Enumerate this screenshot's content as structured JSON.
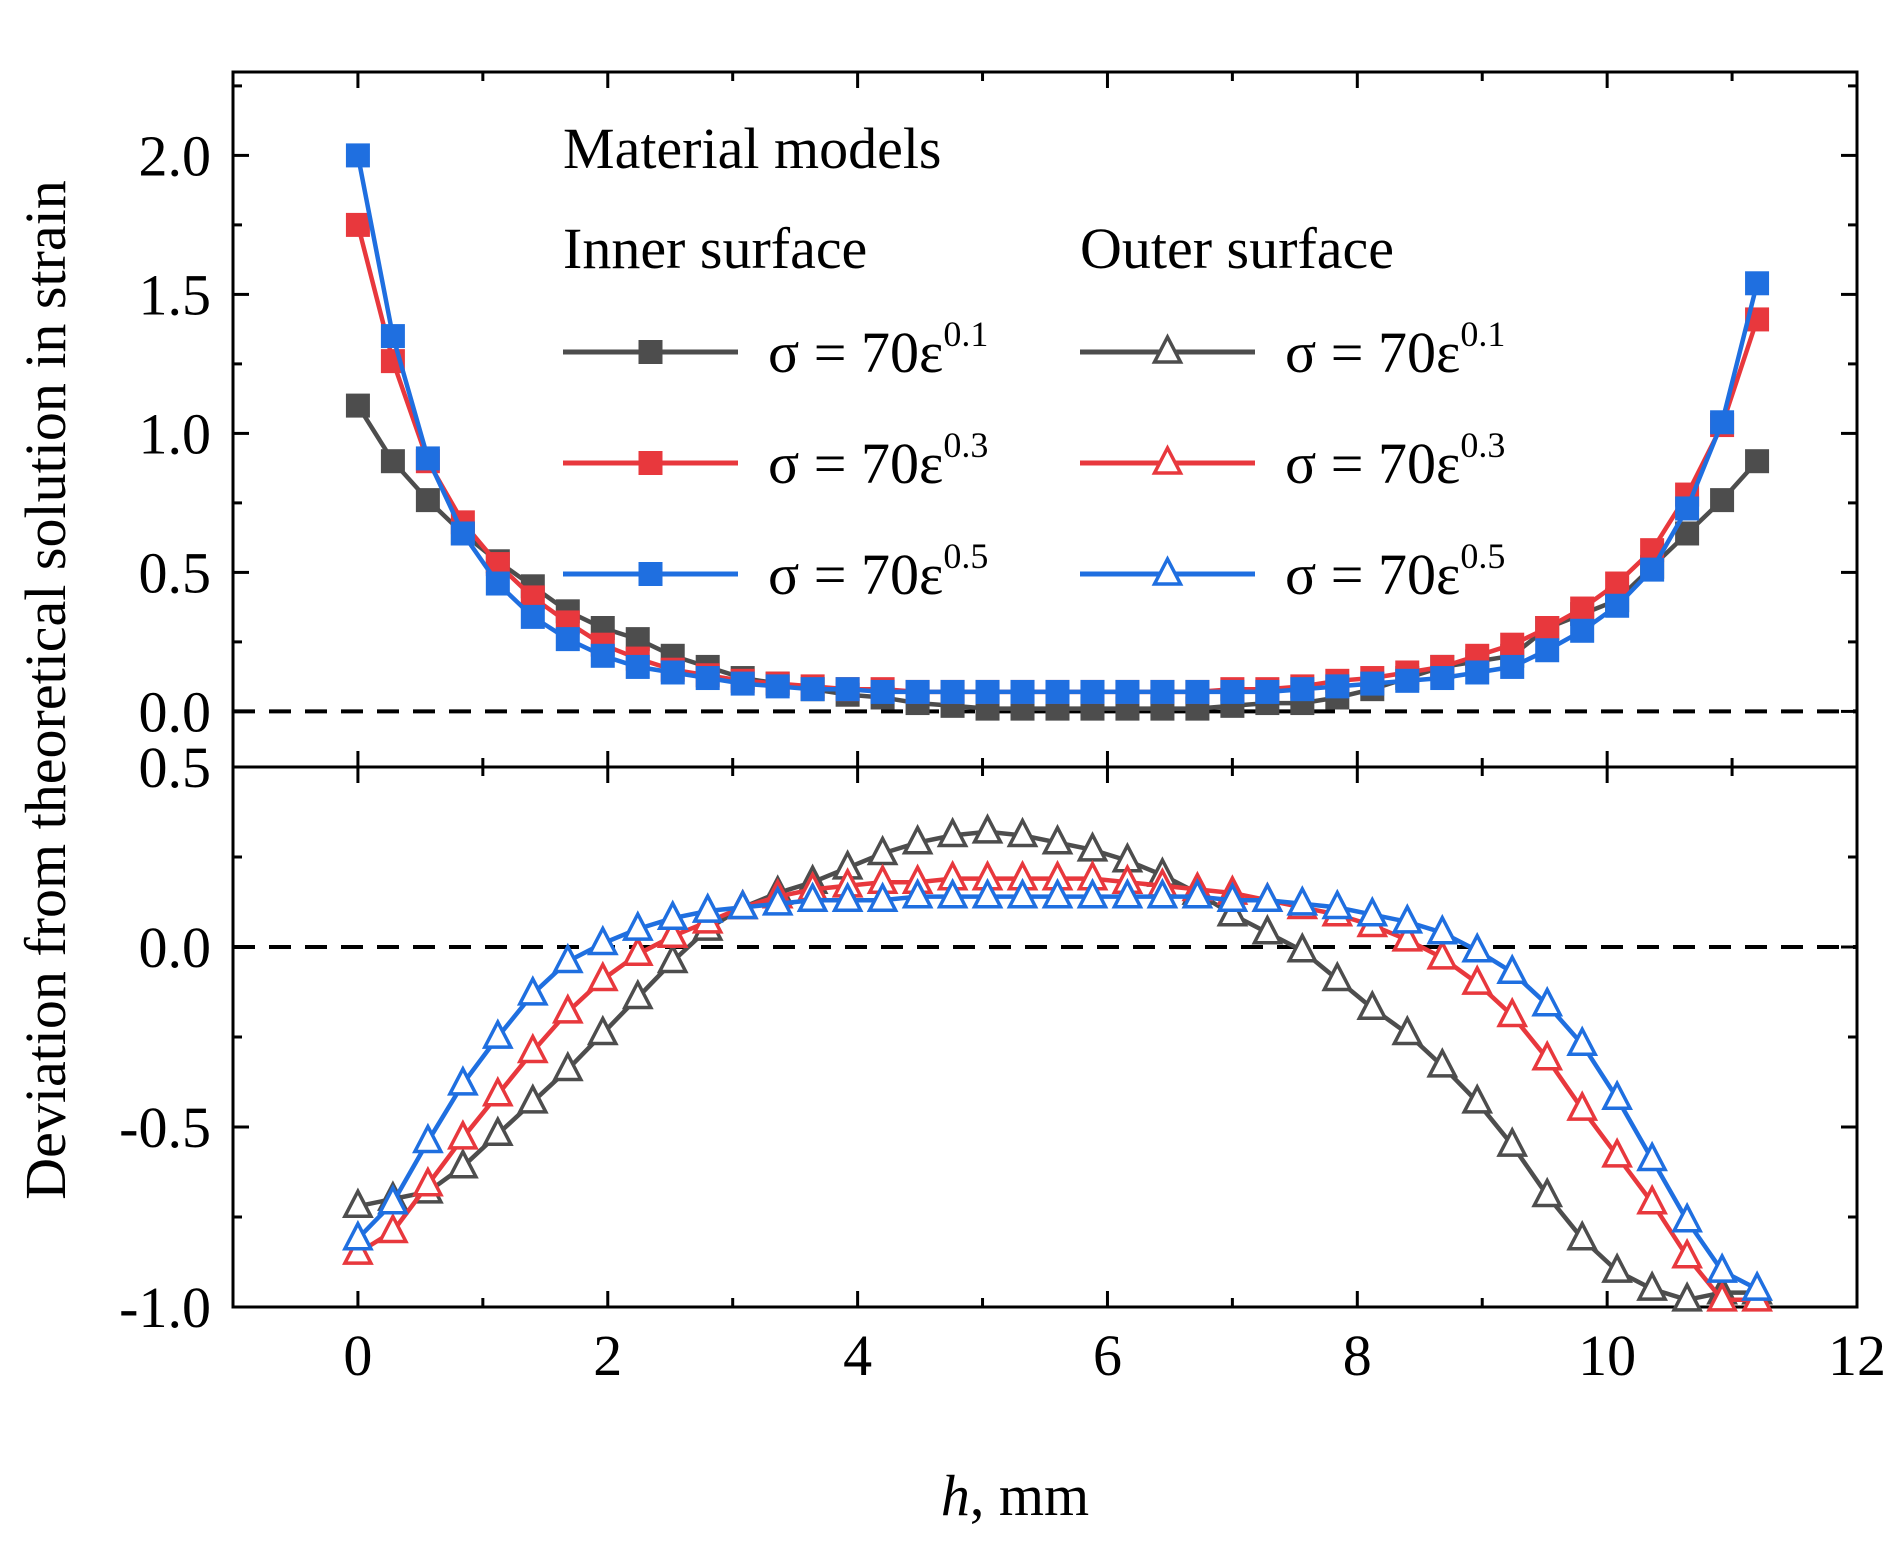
{
  "colors": {
    "gray": "#4d4d4d",
    "red": "#e8383d",
    "blue": "#1f6fe0",
    "axis": "#000000"
  },
  "chart_data": [
    {
      "type": "line",
      "panel": "top",
      "title": "",
      "xlim": [
        -1,
        12
      ],
      "ylim": [
        -0.2,
        2.3
      ],
      "y_ticks": [
        "0.0",
        "0.5",
        "1.0",
        "1.5",
        "2.0"
      ],
      "y_tick_values": [
        0,
        0.5,
        1.0,
        1.5,
        2.0
      ],
      "reference_line": 0,
      "legend": {
        "heading": "Material models",
        "group_labels": [
          "Inner surface",
          "Outer surface"
        ]
      },
      "x": [
        0.0,
        0.28,
        0.56,
        0.84,
        1.12,
        1.4,
        1.68,
        1.96,
        2.24,
        2.52,
        2.8,
        3.08,
        3.36,
        3.64,
        3.92,
        4.2,
        4.48,
        4.76,
        5.04,
        5.32,
        5.6,
        5.88,
        6.16,
        6.44,
        6.72,
        7.0,
        7.28,
        7.56,
        7.84,
        8.12,
        8.4,
        8.68,
        8.96,
        9.24,
        9.52,
        9.8,
        10.08,
        10.36,
        10.64,
        10.92,
        11.2
      ],
      "series": [
        {
          "name": "σ = 70ε0.1",
          "base": "σ = 70ε",
          "exponent": "0.1",
          "group": "Inner surface",
          "color_key": "gray",
          "marker": "square",
          "values": [
            1.1,
            0.9,
            0.76,
            0.64,
            0.54,
            0.45,
            0.36,
            0.3,
            0.26,
            0.2,
            0.16,
            0.12,
            0.1,
            0.08,
            0.06,
            0.05,
            0.03,
            0.02,
            0.01,
            0.01,
            0.01,
            0.01,
            0.01,
            0.01,
            0.01,
            0.02,
            0.03,
            0.03,
            0.05,
            0.08,
            0.12,
            0.16,
            0.18,
            0.2,
            0.3,
            0.35,
            0.4,
            0.52,
            0.64,
            0.76,
            0.9
          ]
        },
        {
          "name": "σ = 70ε0.3",
          "base": "σ = 70ε",
          "exponent": "0.3",
          "group": "Inner surface",
          "color_key": "red",
          "marker": "square",
          "values": [
            1.75,
            1.26,
            0.9,
            0.68,
            0.53,
            0.41,
            0.32,
            0.24,
            0.19,
            0.15,
            0.13,
            0.11,
            0.1,
            0.09,
            0.08,
            0.08,
            0.07,
            0.07,
            0.07,
            0.07,
            0.07,
            0.07,
            0.07,
            0.07,
            0.07,
            0.08,
            0.08,
            0.09,
            0.11,
            0.12,
            0.14,
            0.16,
            0.2,
            0.24,
            0.3,
            0.37,
            0.46,
            0.58,
            0.78,
            1.03,
            1.41
          ]
        },
        {
          "name": "σ = 70ε0.5",
          "base": "σ = 70ε",
          "exponent": "0.5",
          "group": "Inner surface",
          "color_key": "blue",
          "marker": "square",
          "values": [
            2.0,
            1.35,
            0.91,
            0.64,
            0.46,
            0.34,
            0.26,
            0.2,
            0.16,
            0.14,
            0.12,
            0.1,
            0.09,
            0.08,
            0.08,
            0.07,
            0.07,
            0.07,
            0.07,
            0.07,
            0.07,
            0.07,
            0.07,
            0.07,
            0.07,
            0.07,
            0.07,
            0.08,
            0.09,
            0.1,
            0.11,
            0.12,
            0.14,
            0.16,
            0.22,
            0.29,
            0.38,
            0.51,
            0.73,
            1.04,
            1.54
          ]
        }
      ]
    },
    {
      "type": "line",
      "panel": "bottom",
      "title": "",
      "xlabel_italic": "h",
      "xlabel_rest": ", mm",
      "ylabel": "Deviation from theoretical solution in strain",
      "xlim": [
        -1,
        12
      ],
      "ylim": [
        -1.0,
        0.5
      ],
      "x_ticks": [
        "0",
        "2",
        "4",
        "6",
        "8",
        "10",
        "12"
      ],
      "x_tick_values": [
        0,
        2,
        4,
        6,
        8,
        10,
        12
      ],
      "y_ticks": [
        "-1.0",
        "-0.5",
        "0.0",
        "0.5"
      ],
      "y_tick_values": [
        -1.0,
        -0.5,
        0.0,
        0.5
      ],
      "reference_line": 0,
      "x": [
        0.0,
        0.28,
        0.56,
        0.84,
        1.12,
        1.4,
        1.68,
        1.96,
        2.24,
        2.52,
        2.8,
        3.08,
        3.36,
        3.64,
        3.92,
        4.2,
        4.48,
        4.76,
        5.04,
        5.32,
        5.6,
        5.88,
        6.16,
        6.44,
        6.72,
        7.0,
        7.28,
        7.56,
        7.84,
        8.12,
        8.4,
        8.68,
        8.96,
        9.24,
        9.52,
        9.8,
        10.08,
        10.36,
        10.64,
        10.92,
        11.2
      ],
      "series": [
        {
          "name": "σ = 70ε0.1",
          "base": "σ = 70ε",
          "exponent": "0.1",
          "group": "Outer surface",
          "color_key": "gray",
          "marker": "triangle",
          "values": [
            -0.72,
            -0.7,
            -0.68,
            -0.61,
            -0.52,
            -0.43,
            -0.34,
            -0.24,
            -0.14,
            -0.04,
            0.05,
            0.11,
            0.15,
            0.18,
            0.22,
            0.26,
            0.29,
            0.31,
            0.32,
            0.31,
            0.29,
            0.27,
            0.24,
            0.2,
            0.15,
            0.09,
            0.04,
            -0.01,
            -0.09,
            -0.17,
            -0.24,
            -0.33,
            -0.43,
            -0.55,
            -0.69,
            -0.81,
            -0.9,
            -0.95,
            -0.98,
            -0.96,
            -0.96
          ]
        },
        {
          "name": "σ = 70ε0.3",
          "base": "σ = 70ε",
          "exponent": "0.3",
          "group": "Outer surface",
          "color_key": "red",
          "marker": "triangle",
          "values": [
            -0.85,
            -0.79,
            -0.66,
            -0.53,
            -0.41,
            -0.29,
            -0.18,
            -0.09,
            -0.02,
            0.03,
            0.07,
            0.11,
            0.14,
            0.16,
            0.17,
            0.18,
            0.18,
            0.19,
            0.19,
            0.19,
            0.19,
            0.19,
            0.18,
            0.17,
            0.16,
            0.15,
            0.13,
            0.11,
            0.09,
            0.06,
            0.02,
            -0.03,
            -0.1,
            -0.19,
            -0.31,
            -0.45,
            -0.58,
            -0.71,
            -0.86,
            -0.98,
            -0.98
          ]
        },
        {
          "name": "σ = 70ε0.5",
          "base": "σ = 70ε",
          "exponent": "0.5",
          "group": "Outer surface",
          "color_key": "blue",
          "marker": "triangle",
          "values": [
            -0.81,
            -0.71,
            -0.54,
            -0.38,
            -0.25,
            -0.13,
            -0.04,
            0.01,
            0.05,
            0.08,
            0.1,
            0.11,
            0.12,
            0.13,
            0.13,
            0.13,
            0.14,
            0.14,
            0.14,
            0.14,
            0.14,
            0.14,
            0.14,
            0.14,
            0.14,
            0.13,
            0.13,
            0.12,
            0.11,
            0.09,
            0.07,
            0.04,
            -0.01,
            -0.07,
            -0.16,
            -0.27,
            -0.42,
            -0.59,
            -0.76,
            -0.9,
            -0.95
          ]
        }
      ]
    }
  ]
}
